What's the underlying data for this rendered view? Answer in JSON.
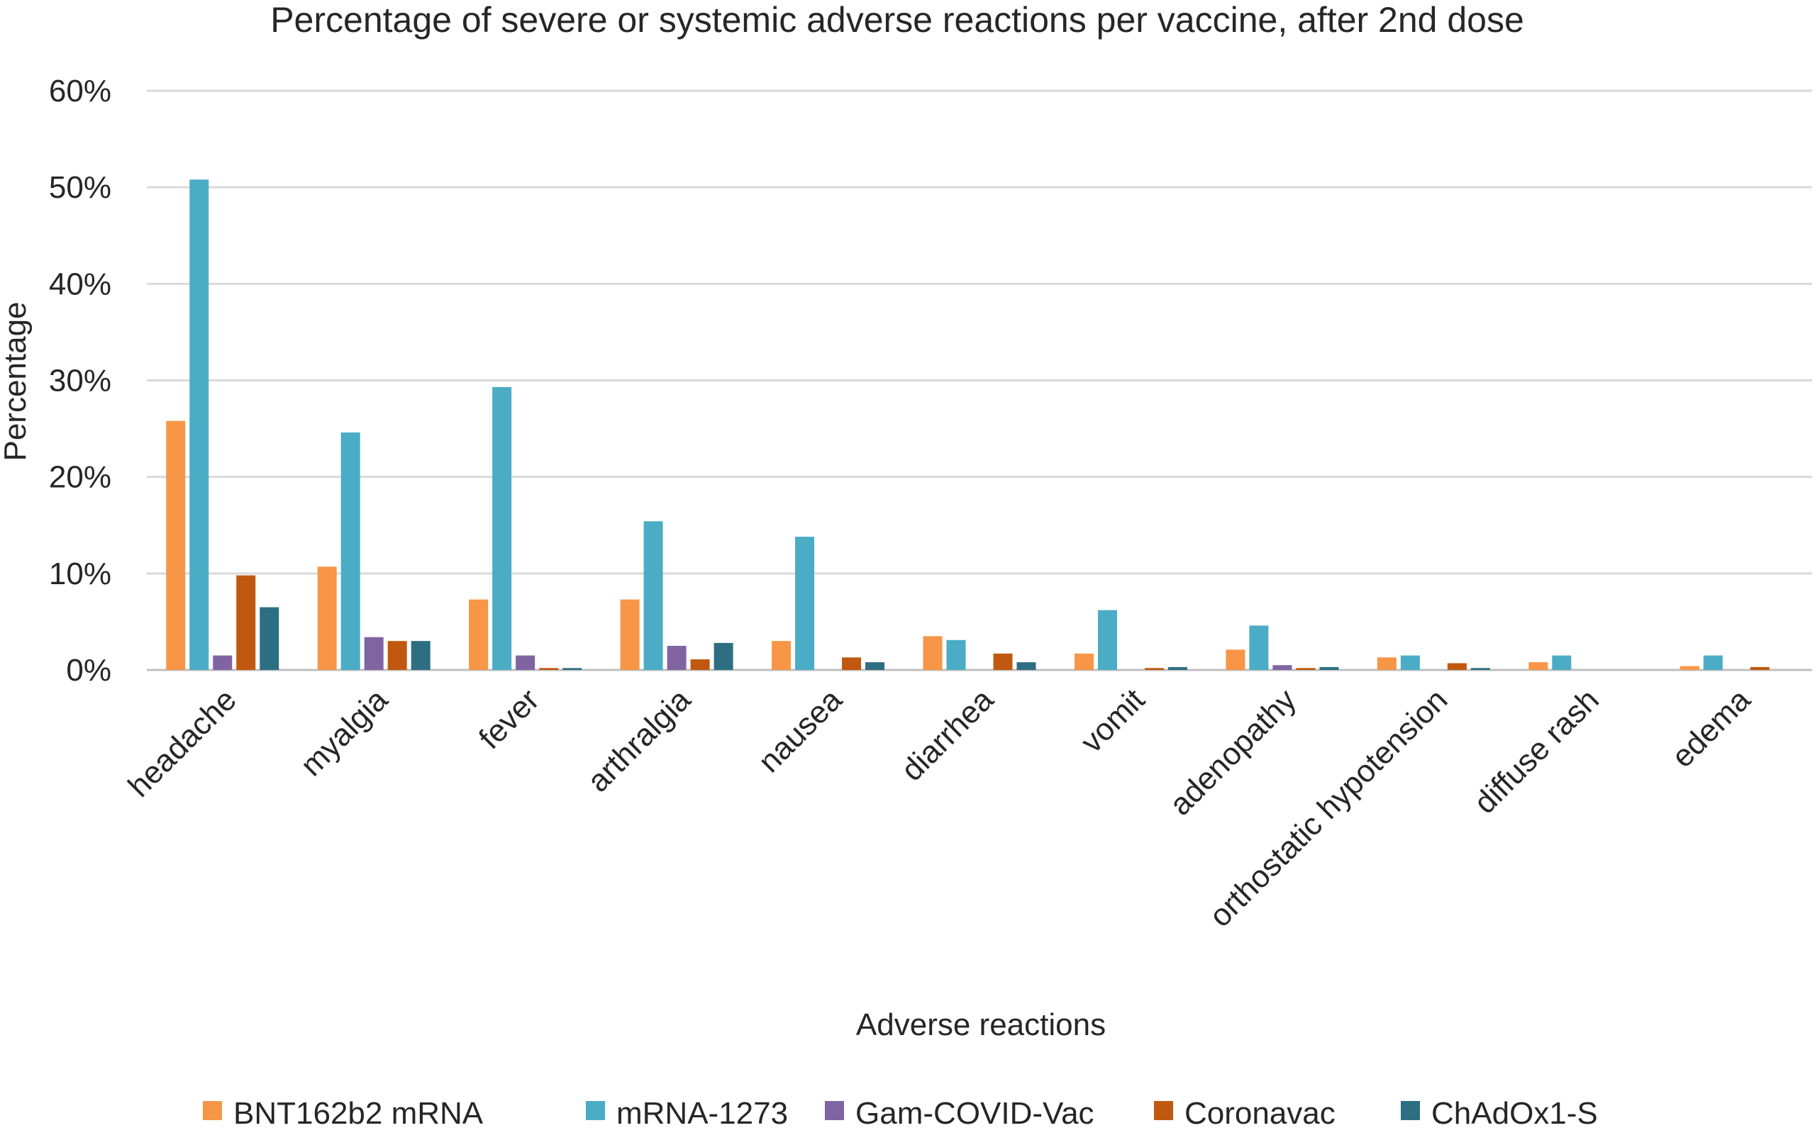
{
  "chart_data": {
    "type": "bar",
    "title": "Percentage of severe or systemic adverse reactions per vaccine, after 2nd dose",
    "xlabel": "Adverse reactions",
    "ylabel": "Percentage",
    "ylim": [
      0,
      60
    ],
    "yticks": [
      "0%",
      "10%",
      "20%",
      "30%",
      "40%",
      "50%",
      "60%"
    ],
    "grid": true,
    "legend_position": "bottom",
    "categories": [
      "headache",
      "myalgia",
      "fever",
      "arthralgia",
      "nausea",
      "diarrhea",
      "vomit",
      "adenopathy",
      "orthostatic hypotension",
      "diffuse rash",
      "edema"
    ],
    "series": [
      {
        "name": "BNT162b2 mRNA",
        "color": "#F79646",
        "values": [
          25.8,
          10.7,
          7.3,
          7.3,
          3.0,
          3.5,
          1.7,
          2.1,
          1.3,
          0.8,
          0.4
        ]
      },
      {
        "name": "mRNA-1273",
        "color": "#4BACC6",
        "values": [
          50.8,
          24.6,
          29.3,
          15.4,
          13.8,
          3.1,
          6.2,
          4.6,
          1.5,
          1.5,
          1.5
        ]
      },
      {
        "name": "Gam-COVID-Vac",
        "color": "#8064A2",
        "values": [
          1.5,
          3.4,
          1.5,
          2.5,
          0,
          0,
          0,
          0.5,
          0,
          0,
          0
        ]
      },
      {
        "name": "Coronavac",
        "color": "#C0590F",
        "values": [
          9.8,
          3.0,
          0.2,
          1.1,
          1.3,
          1.7,
          0.2,
          0.2,
          0.7,
          0,
          0.3
        ]
      },
      {
        "name": "ChAdOx1-S",
        "color": "#2E6E82",
        "values": [
          6.5,
          3.0,
          0.2,
          2.8,
          0.8,
          0.8,
          0.3,
          0.3,
          0.2,
          0,
          0
        ]
      }
    ]
  }
}
